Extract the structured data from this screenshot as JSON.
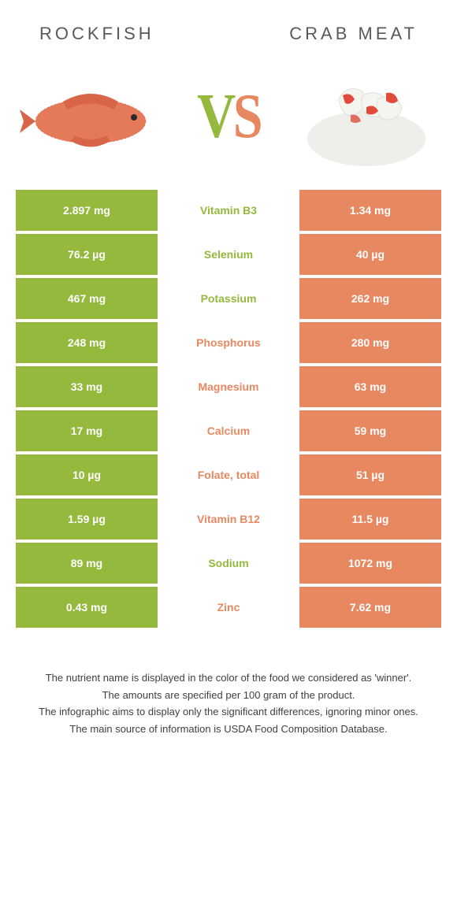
{
  "colors": {
    "left": "#94b93d",
    "right": "#e88860",
    "title": "#595959",
    "footnote": "#404040"
  },
  "foods": {
    "left": "Rockfish",
    "right": "Crab meat"
  },
  "rows": [
    {
      "left": "2.897 mg",
      "label": "Vitamin B3",
      "winner": "left",
      "right": "1.34 mg"
    },
    {
      "left": "76.2 µg",
      "label": "Selenium",
      "winner": "left",
      "right": "40 µg"
    },
    {
      "left": "467 mg",
      "label": "Potassium",
      "winner": "left",
      "right": "262 mg"
    },
    {
      "left": "248 mg",
      "label": "Phosphorus",
      "winner": "right",
      "right": "280 mg"
    },
    {
      "left": "33 mg",
      "label": "Magnesium",
      "winner": "right",
      "right": "63 mg"
    },
    {
      "left": "17 mg",
      "label": "Calcium",
      "winner": "right",
      "right": "59 mg"
    },
    {
      "left": "10 µg",
      "label": "Folate, total",
      "winner": "right",
      "right": "51 µg"
    },
    {
      "left": "1.59 µg",
      "label": "Vitamin B12",
      "winner": "right",
      "right": "11.5 µg"
    },
    {
      "left": "89 mg",
      "label": "Sodium",
      "winner": "left",
      "right": "1072 mg"
    },
    {
      "left": "0.43 mg",
      "label": "Zinc",
      "winner": "right",
      "right": "7.62 mg"
    }
  ],
  "footnotes": [
    "The nutrient name is displayed in the color of the food we considered as 'winner'.",
    "The amounts are specified per 100 gram of the product.",
    "The infographic aims to display only the significant differences, ignoring minor ones.",
    "The main source of information is USDA Food Composition Database."
  ]
}
